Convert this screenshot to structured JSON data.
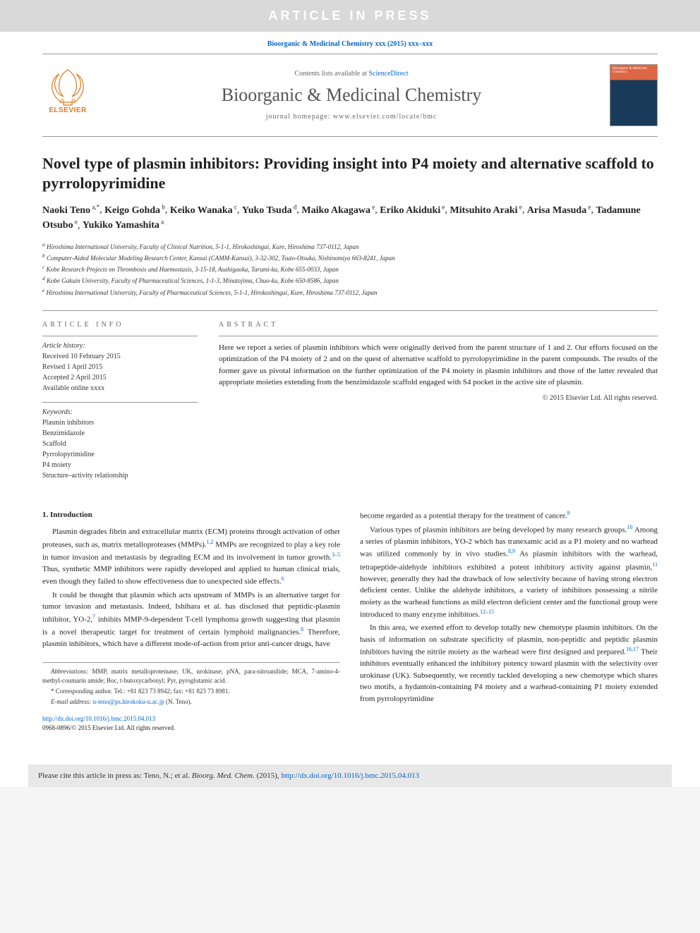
{
  "banner": {
    "text": "ARTICLE IN PRESS"
  },
  "topCitation": "Bioorganic & Medicinal Chemistry xxx (2015) xxx–xxx",
  "header": {
    "elsevierLabel": "ELSEVIER",
    "contentsPrefix": "Contents lists available at ",
    "contentsLink": "ScienceDirect",
    "journalName": "Bioorganic & Medicinal Chemistry",
    "homepagePrefix": "journal homepage: ",
    "homepageUrl": "www.elsevier.com/locate/bmc",
    "coverTitle": "Bioorganic & Medicinal Chemistry"
  },
  "title": "Novel type of plasmin inhibitors: Providing insight into P4 moiety and alternative scaffold to pyrrolopyrimidine",
  "authors": [
    {
      "name": "Naoki Teno",
      "affil": "a,",
      "mark": "*"
    },
    {
      "name": "Keigo Gohda",
      "affil": "b"
    },
    {
      "name": "Keiko Wanaka",
      "affil": "c"
    },
    {
      "name": "Yuko Tsuda",
      "affil": "d"
    },
    {
      "name": "Maiko Akagawa",
      "affil": "e"
    },
    {
      "name": "Eriko Akiduki",
      "affil": "e"
    },
    {
      "name": "Mitsuhito Araki",
      "affil": "e"
    },
    {
      "name": "Arisa Masuda",
      "affil": "e"
    },
    {
      "name": "Tadamune Otsubo",
      "affil": "e"
    },
    {
      "name": "Yukiko Yamashita",
      "affil": "a"
    }
  ],
  "affiliations": [
    "a Hiroshima International University, Faculty of Clinical Nutrition, 5-1-1, Hirokoshingai, Kure, Hiroshima 737-0112, Japan",
    "b Computer-Aided Molecular Modeling Research Center, Kansai (CAMM-Kansai), 3-32-302, Tsuto-Otsuka, Nishinomiya 663-8241, Japan",
    "c Kobe Research Projects on Thrombosis and Haemostasis, 3-15-18, Asahigaoka, Tarumi-ku, Kobe 655-0033, Japan",
    "d Kobe Gakuin University, Faculty of Pharmaceutical Sciences, 1-1-3, Minatojima, Chuo-ku, Kobe 650-8586, Japan",
    "e Hiroshima International University, Faculty of Pharmaceutical Sciences, 5-1-1, Hirokoshingai, Kure, Hiroshima 737-0112, Japan"
  ],
  "articleInfo": {
    "header": "ARTICLE INFO",
    "historyLabel": "Article history:",
    "history": [
      "Received 10 February 2015",
      "Revised 1 April 2015",
      "Accepted 2 April 2015",
      "Available online xxxx"
    ],
    "keywordsLabel": "Keywords:",
    "keywords": [
      "Plasmin inhibitors",
      "Benzimidazole",
      "Scaffold",
      "Pyrrolopyrimidine",
      "P4 moiety",
      "Structure–activity relationship"
    ]
  },
  "abstract": {
    "header": "ABSTRACT",
    "text": "Here we report a series of plasmin inhibitors which were originally derived from the parent structure of 1 and 2. Our efforts focused on the optimization of the P4 moiety of 2 and on the quest of alternative scaffold to pyrrolopyrimidine in the parent compounds. The results of the former gave us pivotal information on the further optimization of the P4 moiety in plasmin inhibitors and those of the latter revealed that appropriate moieties extending from the benzimidazole scaffold engaged with S4 pocket in the active site of plasmin.",
    "copyright": "© 2015 Elsevier Ltd. All rights reserved."
  },
  "introHeading": "1. Introduction",
  "leftParas": [
    {
      "segments": [
        {
          "t": "Plasmin degrades fibrin and extracellular matrix (ECM) proteins through activation of other proteases, such as, matrix metalloproteases (MMPs)."
        },
        {
          "ref": "1,2"
        },
        {
          "t": " MMPs are recognized to play a key role in tumor invasion and metastasis by degrading ECM and its involvement in tumor growth."
        },
        {
          "ref": "3–5"
        },
        {
          "t": " Thus, synthetic MMP inhibitors were rapidly developed and applied to human clinical trials, even though they failed to show effectiveness due to unexpected side effects."
        },
        {
          "ref": "6"
        }
      ]
    },
    {
      "segments": [
        {
          "t": "It could be thought that plasmin which acts upstream of MMPs is an alternative target for tumor invasion and metastasis. Indeed, Ishihara et al. has disclosed that peptidic-plasmin inhibitor, YO-2,"
        },
        {
          "ref": "7"
        },
        {
          "t": " inhibits MMP-9-dependent T-cell lymphoma growth suggesting that plasmin is a novel therapeutic target for treatment of certain lymphoid malignancies."
        },
        {
          "ref": "8"
        },
        {
          "t": " Therefore, plasmin inhibitors, which have a different mode-of-action from prior anti-cancer drugs, have"
        }
      ]
    }
  ],
  "rightParas": [
    {
      "segments": [
        {
          "t": "become regarded as a potential therapy for the treatment of cancer."
        },
        {
          "ref": "9"
        }
      ],
      "noIndent": true
    },
    {
      "segments": [
        {
          "t": "Various types of plasmin inhibitors are being developed by many research groups."
        },
        {
          "ref": "10"
        },
        {
          "t": " Among a series of plasmin inhibitors, YO-2 which has tranexamic acid as a P1 moiety and no warhead was utilized commonly by in vivo studies."
        },
        {
          "ref": "8,9"
        },
        {
          "t": " As plasmin inhibitors with the warhead, tetrapeptide-aldehyde inhibitors exhibited a potent inhibitory activity against plasmin,"
        },
        {
          "ref": "11"
        },
        {
          "t": " however, generally they had the drawback of low selectivity because of having strong electron deficient center. Unlike the aldehyde inhibitors, a variety of inhibitors possessing a nitrile moiety as the warhead functions as mild electron deficient center and the functional group were introduced to many enzyme inhibitors."
        },
        {
          "ref": "12–15"
        }
      ]
    },
    {
      "segments": [
        {
          "t": "In this area, we exerted effort to develop totally new chemotype plasmin inhibitors. On the basis of information on substrate specificity of plasmin, non-peptidic and peptidic plasmin inhibitors having the nitrile moiety as the warhead were first designed and prepared."
        },
        {
          "ref": "16,17"
        },
        {
          "t": " Their inhibitors eventually enhanced the inhibitory potency toward plasmin with the selectivity over urokinase (UK). Subsequently, we recently tackled developing a new chemotype which shares two motifs, a hydantoin-containing P4 moiety and a warhead-containing P1 moiety extended from pyrrolopyrimidine"
        }
      ]
    }
  ],
  "footnotes": {
    "abbrevLabel": "Abbreviations:",
    "abbrevText": " MMP, matrix metalloproteinase; UK, urokinase; pNA, para-nitroanilide; MCA, 7-amino-4-methyl-coumarin amide; Boc, t-butoxycarbonyl; Pyr, pyroglutamic acid.",
    "corrLabel": "* Corresponding author. ",
    "corrText": "Tel.: +81 823 73 8942; fax: +81 823 73 8981.",
    "emailLabel": "E-mail address: ",
    "email": "n-teno@ps.hirokoku-u.ac.jp",
    "emailSuffix": " (N. Teno)."
  },
  "doi": {
    "url": "http://dx.doi.org/10.1016/j.bmc.2015.04.013",
    "issn": "0968-0896/© 2015 Elsevier Ltd. All rights reserved."
  },
  "citeBox": {
    "prefix": "Please cite this article in press as: Teno, N.; et al. ",
    "journal": "Bioorg. Med. Chem.",
    "year": " (2015), ",
    "link": "http://dx.doi.org/10.1016/j.bmc.2015.04.013"
  },
  "colors": {
    "link": "#0066cc",
    "bannerBg": "#d9d9d9",
    "elsevierOrange": "#e67817",
    "citeBoxBg": "#e8e8e8"
  }
}
